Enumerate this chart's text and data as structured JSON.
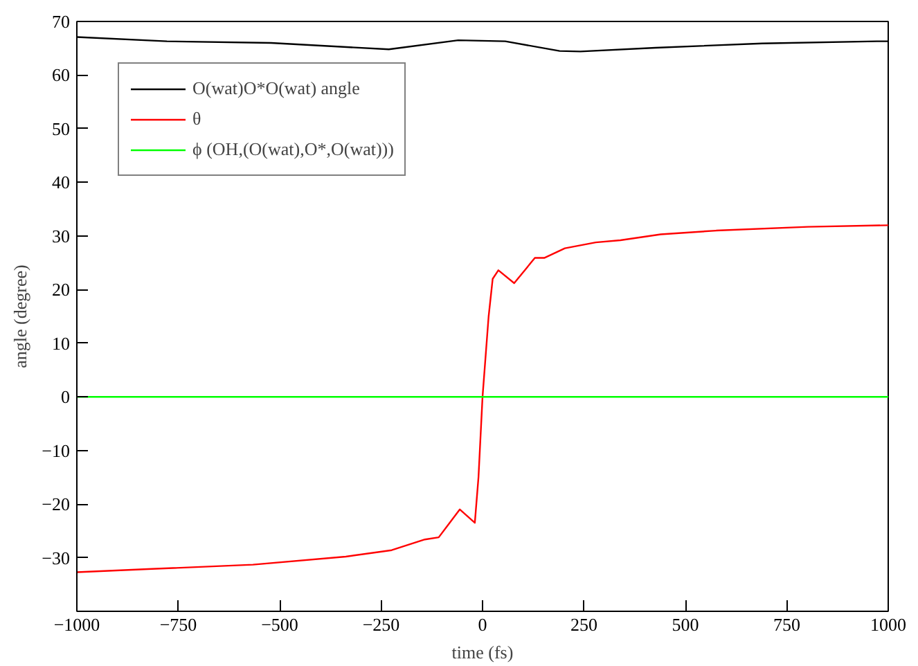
{
  "chart_data": {
    "type": "line",
    "xlabel": "time (fs)",
    "ylabel": "angle (degree)",
    "xlim": [
      -1000,
      1000
    ],
    "xticks": [
      -1000,
      -750,
      -500,
      -250,
      0,
      250,
      500,
      750,
      1000
    ],
    "ylim": [
      -40,
      70
    ],
    "yticks": [
      -30,
      -20,
      -10,
      0,
      10,
      20,
      30,
      40,
      50,
      60,
      70
    ],
    "grid": false,
    "legend": "top left",
    "marker": "none",
    "line_style": "solid",
    "series": [
      {
        "name": "O(wat)O*O(wat) angle",
        "color": "#000000",
        "x": [
          -1000,
          -778,
          -521,
          -231,
          -60,
          56,
          190,
          241,
          426,
          689,
          972,
          1000
        ],
        "values": [
          67.1,
          66.3,
          66.0,
          64.8,
          66.5,
          66.3,
          64.5,
          64.4,
          65.1,
          65.9,
          66.3,
          66.3
        ]
      },
      {
        "name": "θ",
        "color": "#ff0000",
        "x": [
          -1000,
          -815,
          -566,
          -337,
          -224,
          -142,
          -108,
          -56,
          -19,
          -10,
          0,
          15,
          25,
          39,
          78,
          129,
          152,
          203,
          279,
          340,
          439,
          576,
          802,
          1000
        ],
        "values": [
          -32.7,
          -32.1,
          -31.3,
          -29.8,
          -28.6,
          -26.6,
          -26.2,
          -21.0,
          -23.5,
          -15,
          0,
          15,
          22,
          23.6,
          21.2,
          25.9,
          25.9,
          27.7,
          28.8,
          29.2,
          30.3,
          31.0,
          31.7,
          32.0
        ]
      },
      {
        "name": "ϕ (OH,(O(wat),O*,O(wat)))",
        "color": "#00ff00",
        "x": [
          -1000,
          -750,
          -500,
          -250,
          0,
          250,
          500,
          750,
          1000
        ],
        "values": [
          0,
          0,
          0,
          0,
          0,
          0,
          0,
          0,
          0
        ]
      }
    ]
  }
}
